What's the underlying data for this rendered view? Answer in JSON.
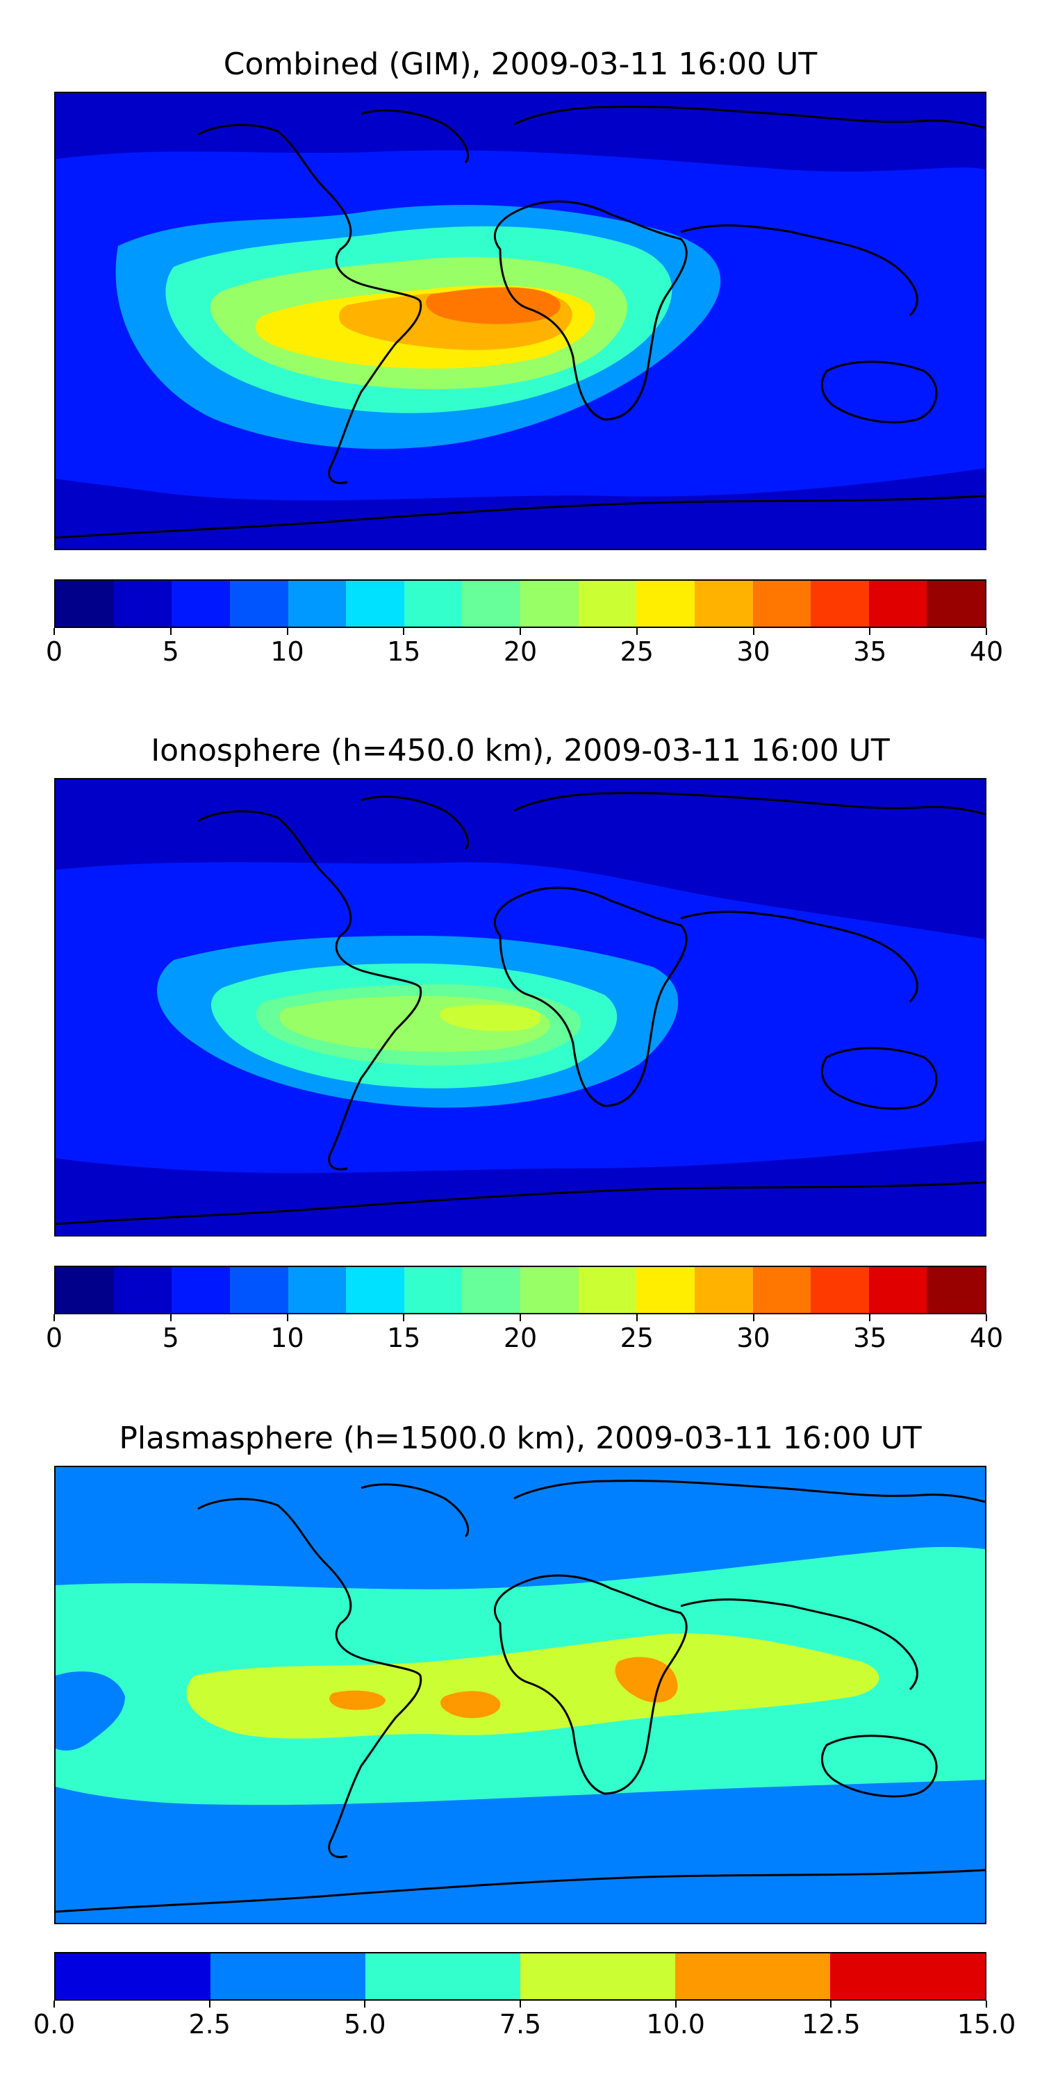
{
  "panels": [
    {
      "title": "Combined (GIM), 2009-03-11 16:00 UT",
      "colorbar": {
        "colors": [
          "#00008b",
          "#0000c8",
          "#0018ff",
          "#0055ff",
          "#0099ff",
          "#00e0ff",
          "#33ffcc",
          "#66ff99",
          "#99ff66",
          "#ccff33",
          "#ffee00",
          "#ffb300",
          "#ff7700",
          "#ff3a00",
          "#e00000",
          "#990000"
        ],
        "ticks": [
          "0",
          "5",
          "10",
          "15",
          "20",
          "25",
          "30",
          "35",
          "40"
        ]
      },
      "map_fields": [
        {
          "level": 2,
          "shape": "band",
          "extent": "broad low-latitude belt"
        },
        {
          "level": 4,
          "shape": "blob",
          "extent": "Atlantic sector anomaly"
        },
        {
          "level": 6,
          "shape": "blob",
          "extent": "Atlantic sector anomaly"
        },
        {
          "level": 8,
          "shape": "blob",
          "extent": "South America - Africa"
        },
        {
          "level": 10,
          "shape": "blob",
          "extent": "South America - Africa"
        },
        {
          "level": 11,
          "shape": "blob",
          "extent": "equatorial Atlantic maximum"
        },
        {
          "level": 12,
          "shape": "blob",
          "extent": "Gulf of Guinea core"
        }
      ]
    },
    {
      "title": "Ionosphere  (h=450.0 km), 2009-03-11 16:00 UT",
      "colorbar": {
        "colors": [
          "#00008b",
          "#0000c8",
          "#0018ff",
          "#0055ff",
          "#0099ff",
          "#00e0ff",
          "#33ffcc",
          "#66ff99",
          "#99ff66",
          "#ccff33",
          "#ffee00",
          "#ffb300",
          "#ff7700",
          "#ff3a00",
          "#e00000",
          "#990000"
        ],
        "ticks": [
          "0",
          "5",
          "10",
          "15",
          "20",
          "25",
          "30",
          "35",
          "40"
        ]
      },
      "map_fields": [
        {
          "level": 2,
          "shape": "band",
          "extent": "low-latitude belt"
        },
        {
          "level": 4,
          "shape": "blob",
          "extent": "Atlantic sector anomaly"
        },
        {
          "level": 6,
          "shape": "blob",
          "extent": "South America - Africa"
        },
        {
          "level": 7,
          "shape": "blob",
          "extent": "equatorial Atlantic"
        },
        {
          "level": 8,
          "shape": "blob",
          "extent": "equatorial Atlantic"
        },
        {
          "level": 9,
          "shape": "blob",
          "extent": "West Africa core"
        }
      ]
    },
    {
      "title": "Plasmasphere (h=1500.0 km), 2009-03-11 16:00 UT",
      "colorbar": {
        "colors": [
          "#0000e0",
          "#0080ff",
          "#33ffcc",
          "#ccff33",
          "#ff9900",
          "#e00000"
        ],
        "ticks": [
          "0.0",
          "2.5",
          "5.0",
          "7.5",
          "10.0",
          "12.5",
          "15.0"
        ]
      },
      "map_fields": [
        {
          "level": 1,
          "shape": "blob",
          "extent": "eastern Pacific low"
        },
        {
          "level": 2,
          "shape": "band",
          "extent": "tropical belt"
        },
        {
          "level": 3,
          "shape": "band",
          "extent": "equatorial belt"
        },
        {
          "level": 4,
          "shape": "spots",
          "extent": "Amazon, Gulf of Guinea, Horn of Africa"
        }
      ]
    }
  ]
}
